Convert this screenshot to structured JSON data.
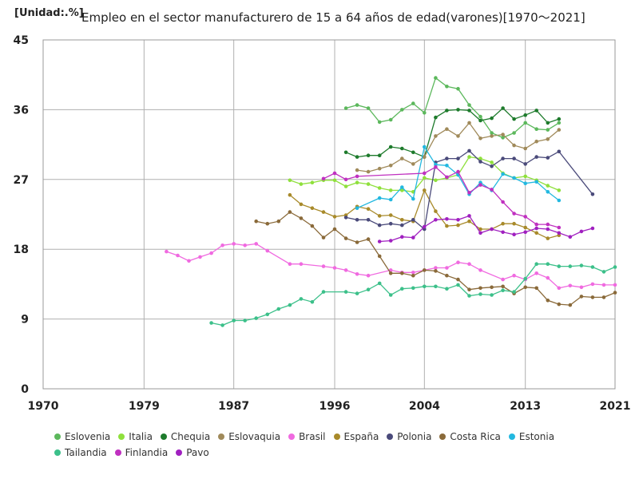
{
  "unit_label": "[Unidad:.%]",
  "chart_data": {
    "type": "line",
    "title": "Empleo en el sector manufacturero de 15 a 64 años de edad(varones)[1970〜2021]",
    "xlabel": "",
    "ylabel": "",
    "xlim": [
      1970,
      2021
    ],
    "ylim": [
      0,
      45
    ],
    "x_ticks": [
      "1970",
      "1979",
      "1987",
      "1996",
      "2004",
      "2013",
      "2021"
    ],
    "x_tick_values": [
      1970,
      1979,
      1987,
      1996,
      2004,
      2013,
      2021
    ],
    "y_ticks": [
      "0",
      "9",
      "18",
      "27",
      "36",
      "45"
    ],
    "y_tick_values": [
      0,
      9,
      18,
      27,
      36,
      45
    ],
    "grid": true,
    "legend_position": "bottom",
    "series": [
      {
        "name": "Eslovenia",
        "color": "#5cb85c",
        "points": [
          [
            1997,
            36.2
          ],
          [
            1998,
            36.6
          ],
          [
            1999,
            36.2
          ],
          [
            2000,
            34.4
          ],
          [
            2001,
            34.7
          ],
          [
            2002,
            36.0
          ],
          [
            2003,
            36.8
          ],
          [
            2004,
            35.6
          ],
          [
            2005,
            40.1
          ],
          [
            2006,
            39.0
          ],
          [
            2007,
            38.7
          ],
          [
            2008,
            36.6
          ],
          [
            2009,
            35.1
          ],
          [
            2010,
            33.0
          ],
          [
            2011,
            32.4
          ],
          [
            2012,
            33.0
          ],
          [
            2013,
            34.3
          ],
          [
            2014,
            33.5
          ],
          [
            2015,
            33.4
          ],
          [
            2016,
            34.3
          ]
        ]
      },
      {
        "name": "Italia",
        "color": "#8fe03c",
        "points": [
          [
            1992,
            26.9
          ],
          [
            1993,
            26.4
          ],
          [
            1994,
            26.6
          ],
          [
            1995,
            26.9
          ],
          [
            1996,
            26.9
          ],
          [
            1997,
            26.1
          ],
          [
            1998,
            26.6
          ],
          [
            1999,
            26.4
          ],
          [
            2000,
            25.9
          ],
          [
            2001,
            25.6
          ],
          [
            2002,
            25.6
          ],
          [
            2003,
            25.4
          ],
          [
            2004,
            27.2
          ],
          [
            2005,
            26.9
          ],
          [
            2006,
            27.2
          ],
          [
            2007,
            27.6
          ],
          [
            2008,
            29.9
          ],
          [
            2009,
            29.7
          ],
          [
            2010,
            29.2
          ],
          [
            2011,
            27.8
          ],
          [
            2012,
            27.2
          ],
          [
            2013,
            27.4
          ],
          [
            2014,
            26.9
          ],
          [
            2015,
            26.2
          ],
          [
            2016,
            25.6
          ]
        ]
      },
      {
        "name": "Chequia",
        "color": "#1e7b2c",
        "points": [
          [
            1997,
            30.5
          ],
          [
            1998,
            29.9
          ],
          [
            1999,
            30.1
          ],
          [
            2000,
            30.1
          ],
          [
            2001,
            31.2
          ],
          [
            2002,
            31.0
          ],
          [
            2003,
            30.5
          ],
          [
            2004,
            29.9
          ],
          [
            2005,
            35.0
          ],
          [
            2006,
            35.9
          ],
          [
            2007,
            36.0
          ],
          [
            2008,
            35.9
          ],
          [
            2009,
            34.6
          ],
          [
            2010,
            34.9
          ],
          [
            2011,
            36.2
          ],
          [
            2012,
            34.8
          ],
          [
            2013,
            35.3
          ],
          [
            2014,
            35.9
          ],
          [
            2015,
            34.3
          ],
          [
            2016,
            34.8
          ]
        ]
      },
      {
        "name": "Eslovaquia",
        "color": "#a08a5a",
        "points": [
          [
            1998,
            28.2
          ],
          [
            1999,
            28.0
          ],
          [
            2000,
            28.4
          ],
          [
            2001,
            28.8
          ],
          [
            2002,
            29.7
          ],
          [
            2003,
            29.0
          ],
          [
            2004,
            29.9
          ],
          [
            2005,
            32.6
          ],
          [
            2006,
            33.5
          ],
          [
            2007,
            32.6
          ],
          [
            2008,
            34.3
          ],
          [
            2009,
            32.3
          ],
          [
            2010,
            32.6
          ],
          [
            2011,
            32.8
          ],
          [
            2012,
            31.4
          ],
          [
            2013,
            31.0
          ],
          [
            2014,
            31.9
          ],
          [
            2015,
            32.2
          ],
          [
            2016,
            33.4
          ]
        ]
      },
      {
        "name": "Brasil",
        "color": "#f06ae0",
        "points": [
          [
            1981,
            17.7
          ],
          [
            1982,
            17.2
          ],
          [
            1983,
            16.5
          ],
          [
            1984,
            17.0
          ],
          [
            1985,
            17.5
          ],
          [
            1986,
            18.5
          ],
          [
            1987,
            18.7
          ],
          [
            1988,
            18.5
          ],
          [
            1989,
            18.7
          ],
          [
            1990,
            17.8
          ],
          [
            1992,
            16.1
          ],
          [
            1993,
            16.1
          ],
          [
            1995,
            15.8
          ],
          [
            1996,
            15.6
          ],
          [
            1997,
            15.3
          ],
          [
            1998,
            14.8
          ],
          [
            1999,
            14.6
          ],
          [
            2001,
            15.3
          ],
          [
            2002,
            15.0
          ],
          [
            2003,
            15.0
          ],
          [
            2004,
            15.3
          ],
          [
            2005,
            15.6
          ],
          [
            2006,
            15.6
          ],
          [
            2007,
            16.3
          ],
          [
            2008,
            16.1
          ],
          [
            2009,
            15.3
          ],
          [
            2011,
            14.1
          ],
          [
            2012,
            14.6
          ],
          [
            2013,
            14.1
          ],
          [
            2014,
            14.9
          ],
          [
            2015,
            14.3
          ],
          [
            2016,
            13.0
          ],
          [
            2017,
            13.3
          ],
          [
            2018,
            13.1
          ],
          [
            2019,
            13.5
          ],
          [
            2020,
            13.4
          ],
          [
            2021,
            13.4
          ]
        ]
      },
      {
        "name": "España",
        "color": "#a88a2a",
        "points": [
          [
            1992,
            25.0
          ],
          [
            1993,
            23.8
          ],
          [
            1994,
            23.3
          ],
          [
            1995,
            22.8
          ],
          [
            1996,
            22.2
          ],
          [
            1997,
            22.4
          ],
          [
            1998,
            23.5
          ],
          [
            1999,
            23.2
          ],
          [
            2000,
            22.3
          ],
          [
            2001,
            22.4
          ],
          [
            2002,
            21.8
          ],
          [
            2003,
            21.6
          ],
          [
            2004,
            25.6
          ],
          [
            2005,
            22.9
          ],
          [
            2006,
            21.0
          ],
          [
            2007,
            21.1
          ],
          [
            2008,
            21.6
          ],
          [
            2009,
            20.6
          ],
          [
            2010,
            20.6
          ],
          [
            2011,
            21.3
          ],
          [
            2012,
            21.3
          ],
          [
            2013,
            20.8
          ],
          [
            2014,
            20.1
          ],
          [
            2015,
            19.4
          ],
          [
            2016,
            19.8
          ]
        ]
      },
      {
        "name": "Polonia",
        "color": "#4a4a7a",
        "points": [
          [
            1997,
            22.1
          ],
          [
            1998,
            21.8
          ],
          [
            1999,
            21.8
          ],
          [
            2000,
            21.1
          ],
          [
            2001,
            21.3
          ],
          [
            2002,
            21.1
          ],
          [
            2003,
            21.8
          ],
          [
            2004,
            20.6
          ],
          [
            2005,
            29.2
          ],
          [
            2006,
            29.7
          ],
          [
            2007,
            29.7
          ],
          [
            2008,
            30.7
          ],
          [
            2009,
            29.3
          ],
          [
            2010,
            28.7
          ],
          [
            2011,
            29.7
          ],
          [
            2012,
            29.7
          ],
          [
            2013,
            29.0
          ],
          [
            2014,
            29.9
          ],
          [
            2015,
            29.8
          ],
          [
            2016,
            30.6
          ],
          [
            2019,
            25.1
          ]
        ]
      },
      {
        "name": "Costa Rica",
        "color": "#8a6a3a",
        "points": [
          [
            1989,
            21.6
          ],
          [
            1990,
            21.3
          ],
          [
            1991,
            21.6
          ],
          [
            1992,
            22.8
          ],
          [
            1993,
            22.0
          ],
          [
            1994,
            21.0
          ],
          [
            1995,
            19.5
          ],
          [
            1996,
            20.6
          ],
          [
            1997,
            19.4
          ],
          [
            1998,
            18.9
          ],
          [
            1999,
            19.3
          ],
          [
            2000,
            17.1
          ],
          [
            2001,
            14.9
          ],
          [
            2002,
            14.9
          ],
          [
            2003,
            14.6
          ],
          [
            2004,
            15.3
          ],
          [
            2005,
            15.2
          ],
          [
            2006,
            14.6
          ],
          [
            2007,
            14.1
          ],
          [
            2008,
            12.8
          ],
          [
            2009,
            13.0
          ],
          [
            2010,
            13.1
          ],
          [
            2011,
            13.2
          ],
          [
            2012,
            12.3
          ],
          [
            2013,
            13.1
          ],
          [
            2014,
            13.0
          ],
          [
            2015,
            11.4
          ],
          [
            2016,
            10.9
          ],
          [
            2017,
            10.8
          ],
          [
            2018,
            11.9
          ],
          [
            2019,
            11.8
          ],
          [
            2020,
            11.8
          ],
          [
            2021,
            12.4
          ]
        ]
      },
      {
        "name": "Estonia",
        "color": "#22b8e0",
        "points": [
          [
            1998,
            23.3
          ],
          [
            2000,
            24.6
          ],
          [
            2001,
            24.4
          ],
          [
            2002,
            26.0
          ],
          [
            2003,
            24.5
          ],
          [
            2004,
            31.2
          ],
          [
            2005,
            28.9
          ],
          [
            2006,
            28.8
          ],
          [
            2007,
            27.6
          ],
          [
            2008,
            25.1
          ],
          [
            2009,
            26.6
          ],
          [
            2010,
            25.6
          ],
          [
            2011,
            27.7
          ],
          [
            2012,
            27.2
          ],
          [
            2013,
            26.5
          ],
          [
            2014,
            26.7
          ],
          [
            2015,
            25.4
          ],
          [
            2016,
            24.3
          ]
        ]
      },
      {
        "name": "Tailandia",
        "color": "#3cc08a",
        "points": [
          [
            1985,
            8.5
          ],
          [
            1986,
            8.2
          ],
          [
            1987,
            8.8
          ],
          [
            1988,
            8.8
          ],
          [
            1989,
            9.1
          ],
          [
            1990,
            9.6
          ],
          [
            1991,
            10.3
          ],
          [
            1992,
            10.8
          ],
          [
            1993,
            11.6
          ],
          [
            1994,
            11.2
          ],
          [
            1995,
            12.5
          ],
          [
            1997,
            12.5
          ],
          [
            1998,
            12.3
          ],
          [
            1999,
            12.8
          ],
          [
            2000,
            13.6
          ],
          [
            2001,
            12.1
          ],
          [
            2002,
            12.9
          ],
          [
            2003,
            13.0
          ],
          [
            2004,
            13.2
          ],
          [
            2005,
            13.2
          ],
          [
            2006,
            12.9
          ],
          [
            2007,
            13.4
          ],
          [
            2008,
            12.0
          ],
          [
            2009,
            12.2
          ],
          [
            2010,
            12.1
          ],
          [
            2011,
            12.7
          ],
          [
            2012,
            12.5
          ],
          [
            2013,
            14.2
          ],
          [
            2014,
            16.1
          ],
          [
            2015,
            16.1
          ],
          [
            2016,
            15.8
          ],
          [
            2017,
            15.8
          ],
          [
            2018,
            15.9
          ],
          [
            2019,
            15.7
          ],
          [
            2020,
            15.1
          ],
          [
            2021,
            15.7
          ]
        ]
      },
      {
        "name": "Finlandia",
        "color": "#c030c0",
        "points": [
          [
            1995,
            27.1
          ],
          [
            1996,
            27.8
          ],
          [
            1997,
            27.0
          ],
          [
            1998,
            27.4
          ],
          [
            2004,
            27.8
          ],
          [
            2005,
            28.6
          ],
          [
            2006,
            27.3
          ],
          [
            2007,
            28.0
          ],
          [
            2008,
            25.3
          ],
          [
            2009,
            26.3
          ],
          [
            2010,
            25.7
          ],
          [
            2011,
            24.1
          ],
          [
            2012,
            22.6
          ],
          [
            2013,
            22.2
          ],
          [
            2014,
            21.2
          ],
          [
            2015,
            21.2
          ],
          [
            2016,
            20.8
          ]
        ]
      },
      {
        "name": "Pavo",
        "color": "#a020c0",
        "points": [
          [
            2000,
            19.0
          ],
          [
            2001,
            19.1
          ],
          [
            2002,
            19.6
          ],
          [
            2003,
            19.5
          ],
          [
            2004,
            20.9
          ],
          [
            2005,
            21.8
          ],
          [
            2006,
            21.9
          ],
          [
            2007,
            21.8
          ],
          [
            2008,
            22.3
          ],
          [
            2009,
            20.1
          ],
          [
            2010,
            20.6
          ],
          [
            2011,
            20.2
          ],
          [
            2012,
            19.9
          ],
          [
            2013,
            20.2
          ],
          [
            2014,
            20.7
          ],
          [
            2015,
            20.6
          ],
          [
            2016,
            20.1
          ],
          [
            2017,
            19.6
          ],
          [
            2018,
            20.3
          ],
          [
            2019,
            20.7
          ]
        ]
      }
    ]
  }
}
